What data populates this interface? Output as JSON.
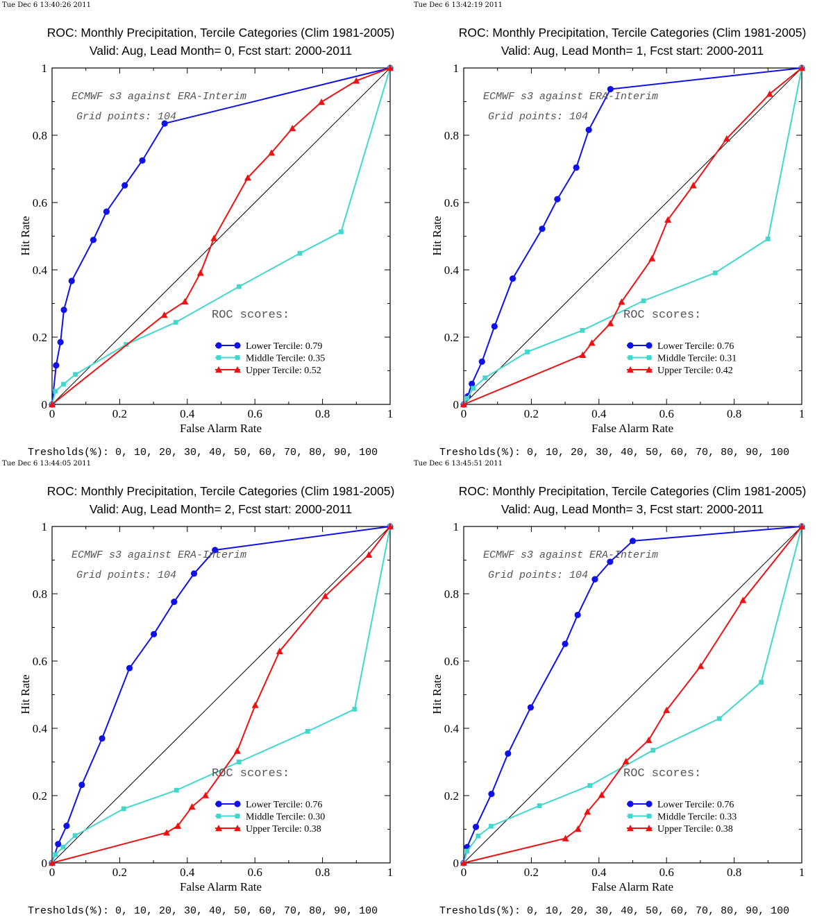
{
  "panels": [
    {
      "timestamp": "Tue Dec  6 13:40:26 2011",
      "title_line1": "ROC: Monthly Precipitation, Tercile Categories (Clim 1981-2005)",
      "title_line2": "Valid: Aug, Lead Month= 0, Fcst start: 2000-2011",
      "annotation_line1": "ECMWF s3 against ERA-Interim",
      "annotation_line2": "Grid points:  104",
      "scores_heading": "ROC scores:",
      "thresholds": "Tresholds(%): 0, 10, 20, 30, 40, 50, 60, 70, 80, 90, 100"
    },
    {
      "timestamp": "Tue Dec  6 13:42:19 2011",
      "title_line1": "ROC: Monthly Precipitation, Tercile Categories (Clim 1981-2005)",
      "title_line2": "Valid: Aug, Lead Month= 1, Fcst start: 2000-2011",
      "annotation_line1": "ECMWF s3 against ERA-Interim",
      "annotation_line2": "Grid points:  104",
      "scores_heading": "ROC scores:",
      "thresholds": "Tresholds(%): 0, 10, 20, 30, 40, 50, 60, 70, 80, 90, 100"
    },
    {
      "timestamp": "Tue Dec  6 13:44:05 2011",
      "title_line1": "ROC: Monthly Precipitation, Tercile Categories (Clim 1981-2005)",
      "title_line2": "Valid: Aug, Lead Month= 2, Fcst start: 2000-2011",
      "annotation_line1": "ECMWF s3 against ERA-Interim",
      "annotation_line2": "Grid points:  104",
      "scores_heading": "ROC scores:",
      "thresholds": "Tresholds(%): 0, 10, 20, 30, 40, 50, 60, 70, 80, 90, 100"
    },
    {
      "timestamp": "Tue Dec  6 13:45:51 2011",
      "title_line1": "ROC: Monthly Precipitation, Tercile Categories (Clim 1981-2005)",
      "title_line2": "Valid: Aug, Lead Month= 3, Fcst start: 2000-2011",
      "annotation_line1": "ECMWF s3 against ERA-Interim",
      "annotation_line2": "Grid points:  104",
      "scores_heading": "ROC scores:",
      "thresholds": "Tresholds(%): 0, 10, 20, 30, 40, 50, 60, 70, 80, 90, 100"
    }
  ],
  "colors": {
    "lower": "#1010e8",
    "middle": "#40d8cc",
    "upper": "#ee1111",
    "diagonal": "#000000"
  },
  "chart_data": [
    {
      "type": "line",
      "xlabel": "False Alarm Rate",
      "ylabel": "Hit Rate",
      "xlim": [
        0,
        1
      ],
      "ylim": [
        0,
        1
      ],
      "ticks": [
        "0",
        "0.2",
        "0.4",
        "0.6",
        "0.8",
        "1"
      ],
      "grid": false,
      "series": [
        {
          "name": "Lower Tercile: 0.79",
          "marker": "circle",
          "x": [
            0,
            0.012,
            0.025,
            0.035,
            0.058,
            0.122,
            0.161,
            0.215,
            0.267,
            0.333,
            1
          ],
          "y": [
            0,
            0.116,
            0.185,
            0.281,
            0.367,
            0.489,
            0.573,
            0.651,
            0.725,
            0.835,
            1
          ]
        },
        {
          "name": "Middle Tercile: 0.35",
          "marker": "square",
          "x": [
            0,
            0.01,
            0.034,
            0.069,
            0.219,
            0.366,
            0.553,
            0.733,
            0.855,
            1
          ],
          "y": [
            0,
            0.039,
            0.06,
            0.089,
            0.178,
            0.244,
            0.35,
            0.449,
            0.513,
            1
          ]
        },
        {
          "name": "Upper Tercile: 0.52",
          "marker": "triangle",
          "x": [
            0,
            0.332,
            0.393,
            0.439,
            0.479,
            0.579,
            0.649,
            0.711,
            0.797,
            0.9,
            1
          ],
          "y": [
            0,
            0.266,
            0.306,
            0.391,
            0.494,
            0.674,
            0.748,
            0.821,
            0.899,
            0.962,
            1
          ]
        }
      ]
    },
    {
      "type": "line",
      "xlabel": "False Alarm Rate",
      "ylabel": "Hit Rate",
      "xlim": [
        0,
        1
      ],
      "ylim": [
        0,
        1
      ],
      "ticks": [
        "0",
        "0.2",
        "0.4",
        "0.6",
        "0.8",
        "1"
      ],
      "grid": false,
      "series": [
        {
          "name": "Lower Tercile: 0.76",
          "marker": "circle",
          "x": [
            0,
            0.012,
            0.024,
            0.054,
            0.091,
            0.145,
            0.232,
            0.277,
            0.333,
            0.37,
            0.434,
            1
          ],
          "y": [
            0,
            0.024,
            0.061,
            0.127,
            0.232,
            0.374,
            0.522,
            0.61,
            0.704,
            0.816,
            0.937,
            1
          ]
        },
        {
          "name": "Middle Tercile: 0.31",
          "marker": "square",
          "x": [
            0,
            0.01,
            0.028,
            0.063,
            0.188,
            0.351,
            0.532,
            0.744,
            0.9,
            1
          ],
          "y": [
            0,
            0.018,
            0.048,
            0.079,
            0.156,
            0.22,
            0.308,
            0.391,
            0.492,
            1
          ]
        },
        {
          "name": "Upper Tercile: 0.42",
          "marker": "triangle",
          "x": [
            0,
            0.352,
            0.379,
            0.434,
            0.467,
            0.557,
            0.604,
            0.679,
            0.778,
            0.905,
            1
          ],
          "y": [
            0,
            0.147,
            0.183,
            0.241,
            0.305,
            0.434,
            0.549,
            0.651,
            0.79,
            0.923,
            1
          ]
        }
      ]
    },
    {
      "type": "line",
      "xlabel": "False Alarm Rate",
      "ylabel": "Hit Rate",
      "xlim": [
        0,
        1
      ],
      "ylim": [
        0,
        1
      ],
      "ticks": [
        "0",
        "0.2",
        "0.4",
        "0.6",
        "0.8",
        "1"
      ],
      "grid": false,
      "series": [
        {
          "name": "Lower Tercile: 0.76",
          "marker": "circle",
          "x": [
            0,
            0.018,
            0.043,
            0.088,
            0.148,
            0.229,
            0.301,
            0.361,
            0.42,
            0.482,
            1
          ],
          "y": [
            0,
            0.056,
            0.11,
            0.232,
            0.37,
            0.579,
            0.68,
            0.776,
            0.86,
            0.93,
            1
          ]
        },
        {
          "name": "Middle Tercile: 0.30",
          "marker": "square",
          "x": [
            0,
            0.01,
            0.033,
            0.068,
            0.212,
            0.368,
            0.553,
            0.756,
            0.895,
            1
          ],
          "y": [
            0,
            0.025,
            0.047,
            0.081,
            0.161,
            0.216,
            0.3,
            0.391,
            0.457,
            1
          ]
        },
        {
          "name": "Upper Tercile: 0.38",
          "marker": "triangle",
          "x": [
            0,
            0.339,
            0.372,
            0.414,
            0.454,
            0.548,
            0.601,
            0.673,
            0.808,
            0.937,
            1
          ],
          "y": [
            0,
            0.09,
            0.11,
            0.167,
            0.201,
            0.333,
            0.469,
            0.629,
            0.793,
            0.916,
            1
          ]
        }
      ]
    },
    {
      "type": "line",
      "xlabel": "False Alarm Rate",
      "ylabel": "Hit Rate",
      "xlim": [
        0,
        1
      ],
      "ylim": [
        0,
        1
      ],
      "ticks": [
        "0",
        "0.2",
        "0.4",
        "0.6",
        "0.8",
        "1"
      ],
      "grid": false,
      "series": [
        {
          "name": "Lower Tercile: 0.76",
          "marker": "circle",
          "x": [
            0,
            0.01,
            0.036,
            0.082,
            0.131,
            0.198,
            0.3,
            0.337,
            0.388,
            0.433,
            0.5,
            1
          ],
          "y": [
            0,
            0.047,
            0.107,
            0.205,
            0.325,
            0.462,
            0.651,
            0.737,
            0.843,
            0.895,
            0.957,
            1
          ]
        },
        {
          "name": "Middle Tercile: 0.33",
          "marker": "square",
          "x": [
            0,
            0.01,
            0.043,
            0.081,
            0.224,
            0.373,
            0.56,
            0.756,
            0.88,
            1
          ],
          "y": [
            0,
            0.035,
            0.08,
            0.109,
            0.17,
            0.23,
            0.335,
            0.429,
            0.537,
            1
          ]
        },
        {
          "name": "Upper Tercile: 0.38",
          "marker": "triangle",
          "x": [
            0,
            0.301,
            0.338,
            0.366,
            0.408,
            0.48,
            0.547,
            0.6,
            0.701,
            0.826,
            1
          ],
          "y": [
            0,
            0.073,
            0.101,
            0.152,
            0.202,
            0.302,
            0.365,
            0.454,
            0.585,
            0.781,
            1
          ]
        }
      ]
    }
  ]
}
